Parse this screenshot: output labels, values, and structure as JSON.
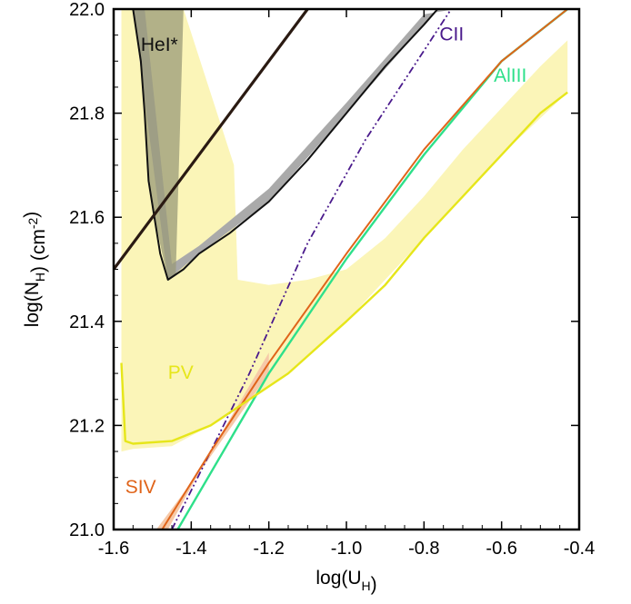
{
  "chart_data": {
    "type": "line",
    "xlabel": "log(U_H)",
    "ylabel": "log(N_H) (cm^-2)",
    "xlim": [
      -1.6,
      -0.4
    ],
    "ylim": [
      21.0,
      22.0
    ],
    "xticks": [
      -1.6,
      -1.4,
      -1.2,
      -1.0,
      -0.8,
      -0.6,
      -0.4
    ],
    "yticks": [
      21.0,
      21.2,
      21.4,
      21.6,
      21.8,
      22.0
    ],
    "xtick_labels": [
      "-1.6",
      "-1.4",
      "-1.2",
      "-1.0",
      "-0.8",
      "-0.6",
      "-0.4"
    ],
    "ytick_labels": [
      "21.0",
      "21.2",
      "21.4",
      "21.6",
      "21.8",
      "22.0"
    ],
    "colors": {
      "HeI": "#111111",
      "HeI_band": "#aaaaaa",
      "CII": "#4a1a8c",
      "AlIII": "#2ee08a",
      "SIV": "#e0641a",
      "SIV_band": "#f6c9a8",
      "PV": "#e6e61a",
      "PV_band": "#fbf5b8",
      "black_line": "#2a1a12"
    },
    "series": [
      {
        "name": "HeI*",
        "label_pos": [
          -1.53,
          21.92
        ],
        "values": [
          [
            -1.55,
            22.0
          ],
          [
            -1.53,
            21.9
          ],
          [
            -1.52,
            21.8
          ],
          [
            -1.51,
            21.67
          ],
          [
            -1.495,
            21.6
          ],
          [
            -1.48,
            21.53
          ],
          [
            -1.46,
            21.48
          ],
          [
            -1.42,
            21.5
          ],
          [
            -1.38,
            21.53
          ],
          [
            -1.3,
            21.57
          ],
          [
            -1.2,
            21.63
          ],
          [
            -1.1,
            21.71
          ],
          [
            -1.0,
            21.8
          ],
          [
            -0.9,
            21.89
          ],
          [
            -0.8,
            21.97
          ],
          [
            -0.765,
            22.0
          ]
        ]
      },
      {
        "name": "CII",
        "label_pos": [
          -0.76,
          21.94
        ],
        "values": [
          [
            -1.45,
            21.0
          ],
          [
            -1.25,
            21.3
          ],
          [
            -1.1,
            21.55
          ],
          [
            -0.95,
            21.75
          ],
          [
            -0.8,
            21.92
          ],
          [
            -0.73,
            22.0
          ]
        ]
      },
      {
        "name": "AlIII",
        "label_pos": [
          -0.62,
          21.86
        ],
        "values": [
          [
            -1.435,
            21.0
          ],
          [
            -1.2,
            21.3
          ],
          [
            -1.0,
            21.52
          ],
          [
            -0.8,
            21.72
          ],
          [
            -0.6,
            21.9
          ],
          [
            -0.43,
            22.0
          ]
        ]
      },
      {
        "name": "SIV",
        "label_pos": [
          -1.57,
          21.07
        ],
        "values": [
          [
            -1.475,
            21.0
          ],
          [
            -1.35,
            21.15
          ],
          [
            -1.2,
            21.32
          ],
          [
            -1.0,
            21.53
          ],
          [
            -0.8,
            21.73
          ],
          [
            -0.6,
            21.9
          ],
          [
            -0.43,
            22.0
          ]
        ]
      },
      {
        "name": "PV",
        "label_pos": [
          -1.46,
          21.29
        ],
        "values": [
          [
            -1.58,
            21.32
          ],
          [
            -1.57,
            21.17
          ],
          [
            -1.55,
            21.165
          ],
          [
            -1.45,
            21.17
          ],
          [
            -1.35,
            21.2
          ],
          [
            -1.25,
            21.25
          ],
          [
            -1.15,
            21.3
          ],
          [
            -1.0,
            21.4
          ],
          [
            -0.9,
            21.47
          ],
          [
            -0.8,
            21.56
          ],
          [
            -0.7,
            21.64
          ],
          [
            -0.6,
            21.72
          ],
          [
            -0.5,
            21.8
          ],
          [
            -0.43,
            21.84
          ]
        ]
      },
      {
        "name": "",
        "values": [
          [
            -1.6,
            21.5
          ],
          [
            -1.1,
            22.0
          ]
        ]
      }
    ],
    "bands": [
      {
        "name": "HeI* band",
        "upper": [
          [
            -1.55,
            22.0
          ],
          [
            -1.46,
            21.48
          ],
          [
            -1.38,
            21.53
          ],
          [
            -1.2,
            21.63
          ],
          [
            -1.0,
            21.8
          ],
          [
            -0.8,
            21.97
          ],
          [
            -0.765,
            22.0
          ]
        ],
        "lower": [
          [
            -1.52,
            22.0
          ],
          [
            -1.45,
            21.51
          ],
          [
            -1.38,
            21.545
          ],
          [
            -1.2,
            21.655
          ],
          [
            -1.0,
            21.82
          ],
          [
            -0.8,
            21.99
          ],
          [
            -0.72,
            22.0
          ]
        ]
      },
      {
        "name": "SIV band",
        "upper": [
          [
            -1.46,
            21.0
          ],
          [
            -1.35,
            21.15
          ],
          [
            -1.2,
            21.34
          ]
        ],
        "lower": [
          [
            -1.49,
            21.0
          ],
          [
            -1.36,
            21.13
          ],
          [
            -1.2,
            21.3
          ]
        ]
      },
      {
        "name": "PV band",
        "outline": [
          [
            -1.58,
            22.0
          ],
          [
            -1.42,
            22.0
          ],
          [
            -1.29,
            21.7
          ],
          [
            -1.28,
            21.48
          ],
          [
            -1.2,
            21.47
          ],
          [
            -1.1,
            21.48
          ],
          [
            -1.0,
            21.5
          ],
          [
            -0.9,
            21.56
          ],
          [
            -0.8,
            21.64
          ],
          [
            -0.7,
            21.73
          ],
          [
            -0.6,
            21.81
          ],
          [
            -0.5,
            21.89
          ],
          [
            -0.43,
            21.94
          ],
          [
            -0.43,
            21.84
          ],
          [
            -0.6,
            21.72
          ],
          [
            -0.8,
            21.56
          ],
          [
            -1.0,
            21.4
          ],
          [
            -1.15,
            21.3
          ],
          [
            -1.25,
            21.25
          ],
          [
            -1.35,
            21.2
          ],
          [
            -1.45,
            21.16
          ],
          [
            -1.55,
            21.155
          ],
          [
            -1.58,
            21.15
          ]
        ]
      }
    ]
  }
}
